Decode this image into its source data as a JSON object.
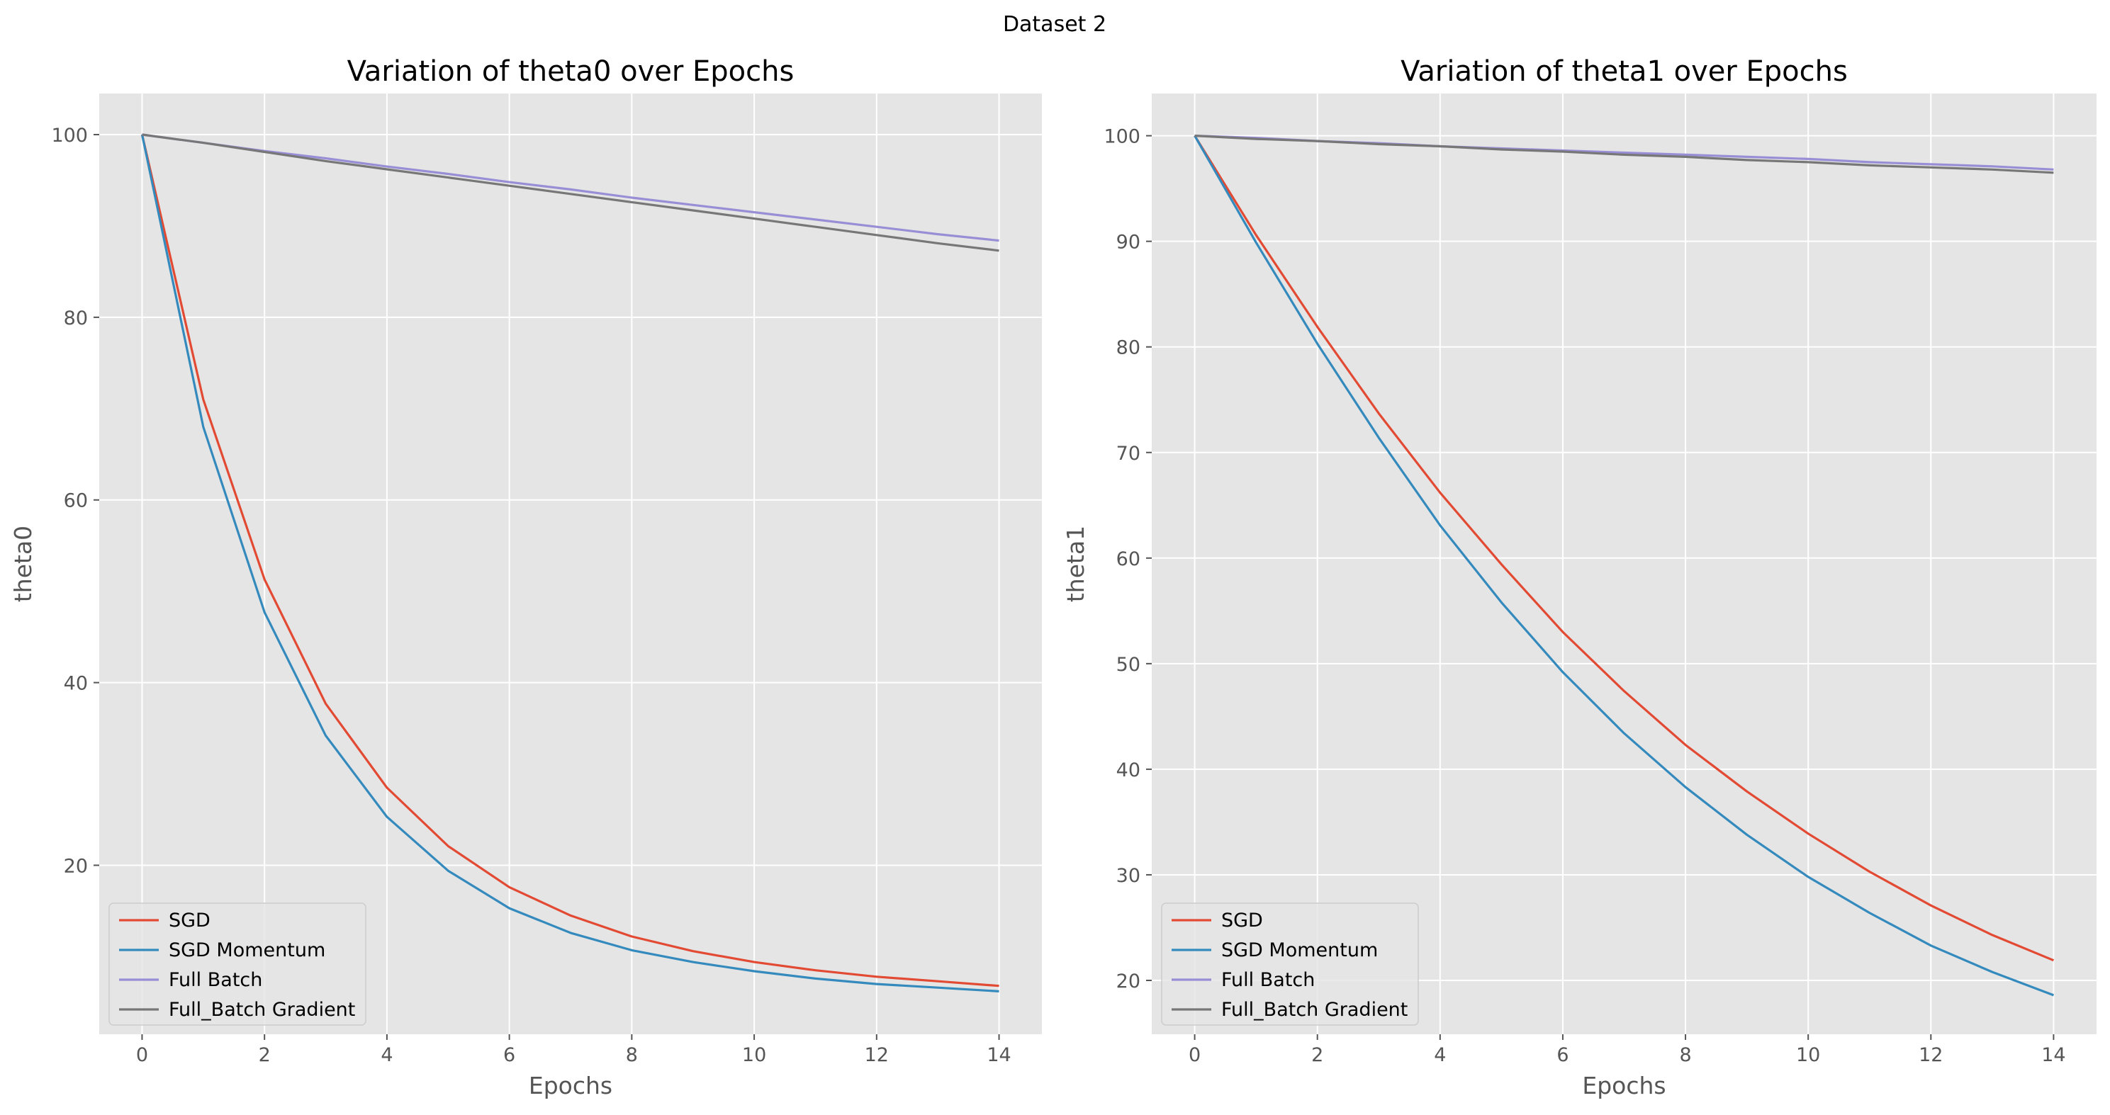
{
  "figure": {
    "suptitle": "Dataset 2"
  },
  "legend": {
    "position": "lower-left",
    "entries": [
      {
        "label": "SGD",
        "color": "#E24A33"
      },
      {
        "label": "SGD Momentum",
        "color": "#348ABD"
      },
      {
        "label": "Full Batch",
        "color": "#988ED5"
      },
      {
        "label": "Full_Batch Gradient",
        "color": "#777777"
      }
    ]
  },
  "chart_data": [
    {
      "type": "line",
      "title": "Variation of theta0 over Epochs",
      "xlabel": "Epochs",
      "ylabel": "theta0",
      "xlim": [
        -0.7,
        14.7
      ],
      "ylim": [
        1.5,
        104.5
      ],
      "xticks": [
        0,
        2,
        4,
        6,
        8,
        10,
        12,
        14
      ],
      "yticks": [
        20,
        40,
        60,
        80,
        100
      ],
      "grid": true,
      "x": [
        0,
        1,
        2,
        3,
        4,
        5,
        6,
        7,
        8,
        9,
        10,
        11,
        12,
        13,
        14
      ],
      "series": [
        {
          "name": "SGD",
          "color": "#E24A33",
          "values": [
            100,
            71,
            51.3,
            37.7,
            28.5,
            22.1,
            17.6,
            14.5,
            12.2,
            10.6,
            9.4,
            8.5,
            7.8,
            7.3,
            6.8
          ]
        },
        {
          "name": "SGD Momentum",
          "color": "#348ABD",
          "values": [
            100,
            68,
            47.7,
            34.2,
            25.3,
            19.4,
            15.3,
            12.6,
            10.7,
            9.4,
            8.4,
            7.6,
            7.0,
            6.6,
            6.2
          ]
        },
        {
          "name": "Full Batch",
          "color": "#988ED5",
          "values": [
            100,
            99.1,
            98.2,
            97.4,
            96.5,
            95.7,
            94.8,
            94.0,
            93.1,
            92.3,
            91.5,
            90.7,
            89.9,
            89.1,
            88.4
          ]
        },
        {
          "name": "Full_Batch Gradient",
          "color": "#777777",
          "values": [
            100,
            99.1,
            98.1,
            97.1,
            96.2,
            95.3,
            94.4,
            93.5,
            92.6,
            91.7,
            90.8,
            89.9,
            89.0,
            88.1,
            87.3
          ]
        }
      ]
    },
    {
      "type": "line",
      "title": "Variation of theta1 over Epochs",
      "xlabel": "Epochs",
      "ylabel": "theta1",
      "xlim": [
        -0.7,
        14.7
      ],
      "ylim": [
        14.9,
        104.0
      ],
      "xticks": [
        0,
        2,
        4,
        6,
        8,
        10,
        12,
        14
      ],
      "yticks": [
        20,
        30,
        40,
        50,
        60,
        70,
        80,
        90,
        100
      ],
      "grid": true,
      "x": [
        0,
        1,
        2,
        3,
        4,
        5,
        6,
        7,
        8,
        9,
        10,
        11,
        12,
        13,
        14
      ],
      "series": [
        {
          "name": "SGD",
          "color": "#E24A33",
          "values": [
            100,
            90.6,
            81.9,
            73.7,
            66.2,
            59.4,
            53.0,
            47.4,
            42.3,
            37.9,
            33.9,
            30.3,
            27.1,
            24.3,
            21.9
          ]
        },
        {
          "name": "SGD Momentum",
          "color": "#348ABD",
          "values": [
            100,
            89.9,
            80.3,
            71.4,
            63.1,
            55.8,
            49.2,
            43.4,
            38.3,
            33.8,
            29.8,
            26.4,
            23.3,
            20.8,
            18.6
          ]
        },
        {
          "name": "Full Batch",
          "color": "#988ED5",
          "values": [
            100,
            99.8,
            99.5,
            99.3,
            99.0,
            98.8,
            98.6,
            98.4,
            98.2,
            98.0,
            97.8,
            97.5,
            97.3,
            97.1,
            96.8
          ]
        },
        {
          "name": "Full_Batch Gradient",
          "color": "#777777",
          "values": [
            100,
            99.7,
            99.5,
            99.2,
            99.0,
            98.7,
            98.5,
            98.2,
            98.0,
            97.7,
            97.5,
            97.2,
            97.0,
            96.8,
            96.5
          ]
        }
      ]
    }
  ]
}
